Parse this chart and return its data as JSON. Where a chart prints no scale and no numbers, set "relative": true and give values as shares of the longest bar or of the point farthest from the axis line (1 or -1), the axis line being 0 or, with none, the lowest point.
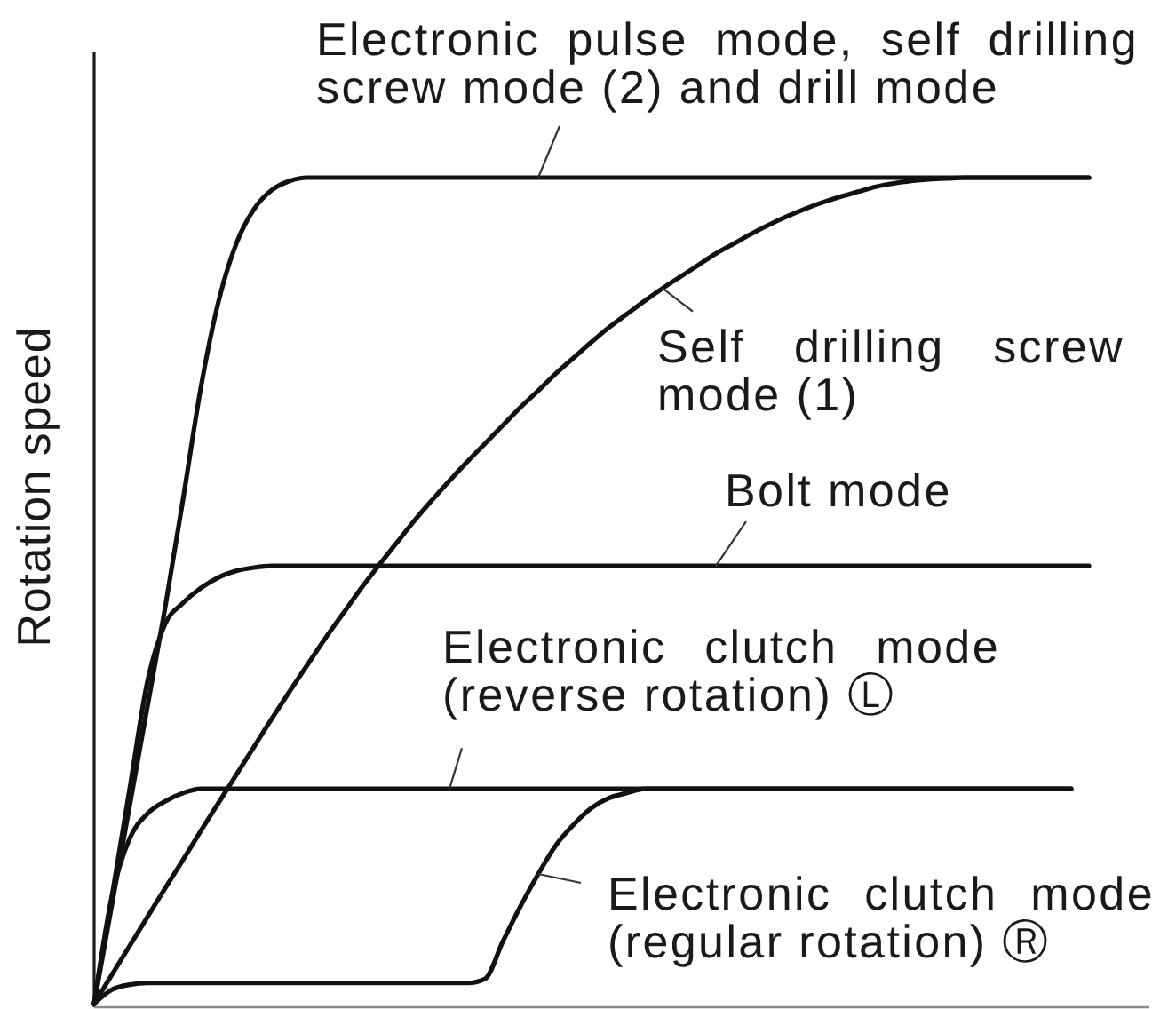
{
  "chart_data": {
    "type": "line",
    "ylabel": "Rotation speed",
    "relative": true,
    "categories": [
      null,
      null,
      null,
      null,
      null,
      null,
      null,
      null,
      null,
      null,
      null,
      null,
      null,
      null,
      null,
      null,
      null,
      null,
      null,
      null,
      null,
      null,
      null,
      null,
      null,
      null,
      null,
      null,
      null,
      null,
      null,
      null,
      null,
      null,
      null,
      null,
      null,
      null,
      null,
      null,
      null,
      null,
      null,
      null,
      null,
      null,
      null,
      null,
      null,
      null,
      null,
      null,
      null,
      null,
      null,
      null,
      null
    ],
    "series": [
      {
        "name": "Electronic pulse mode, self drilling screw mode (2) and drill mode",
        "color": "#111111",
        "values": [
          0,
          0.12,
          0.24,
          0.36,
          0.48,
          0.61,
          0.745,
          0.85,
          0.92,
          0.962,
          0.985,
          0.996,
          1,
          1,
          1,
          1,
          1,
          1,
          1,
          1,
          1,
          1,
          1,
          1,
          1,
          1,
          1,
          1,
          1,
          1,
          1,
          1,
          1,
          1,
          1,
          1,
          1,
          1,
          1,
          1,
          1,
          1,
          1,
          1,
          1,
          1,
          1,
          1,
          1,
          1,
          1,
          1,
          1,
          1,
          1,
          1,
          1
        ]
      },
      {
        "name": "Self drilling screw mode (1)",
        "color": "#111111",
        "values": [
          0,
          0.035,
          0.07,
          0.105,
          0.14,
          0.174,
          0.209,
          0.243,
          0.277,
          0.311,
          0.345,
          0.378,
          0.41,
          0.442,
          0.472,
          0.502,
          0.53,
          0.557,
          0.584,
          0.609,
          0.633,
          0.656,
          0.678,
          0.7,
          0.722,
          0.742,
          0.763,
          0.782,
          0.801,
          0.819,
          0.835,
          0.851,
          0.866,
          0.88,
          0.894,
          0.908,
          0.92,
          0.932,
          0.943,
          0.953,
          0.962,
          0.97,
          0.977,
          0.983,
          0.989,
          0.993,
          0.996,
          0.998,
          0.999,
          1,
          1,
          1,
          1,
          1,
          1,
          1,
          1
        ]
      },
      {
        "name": "Bolt mode",
        "color": "#111111",
        "values": [
          0,
          0.13,
          0.26,
          0.39,
          0.46,
          0.485,
          0.503,
          0.516,
          0.524,
          0.528,
          0.53,
          0.53,
          0.53,
          0.53,
          0.53,
          0.53,
          0.53,
          0.53,
          0.53,
          0.53,
          0.53,
          0.53,
          0.53,
          0.53,
          0.53,
          0.53,
          0.53,
          0.53,
          0.53,
          0.53,
          0.53,
          0.53,
          0.53,
          0.53,
          0.53,
          0.53,
          0.53,
          0.53,
          0.53,
          0.53,
          0.53,
          0.53,
          0.53,
          0.53,
          0.53,
          0.53,
          0.53,
          0.53,
          0.53,
          0.53,
          0.53,
          0.53,
          0.53,
          0.53,
          0.53,
          0.53,
          0.53
        ]
      },
      {
        "name": "Electronic clutch mode (reverse rotation) Ⓛ",
        "color": "#111111",
        "values": [
          0,
          0.13,
          0.2,
          0.23,
          0.245,
          0.255,
          0.26,
          0.26,
          0.26,
          0.26,
          0.26,
          0.26,
          0.26,
          0.26,
          0.26,
          0.26,
          0.26,
          0.26,
          0.26,
          0.26,
          0.26,
          0.26,
          0.26,
          0.26,
          0.26,
          0.26,
          0.26,
          0.26,
          0.26,
          0.26,
          0.26,
          0.26,
          0.26,
          0.26,
          0.26,
          0.26,
          0.26,
          0.26,
          0.26,
          0.26,
          0.26,
          0.26,
          0.26,
          0.26,
          0.26,
          0.26,
          0.26,
          0.26,
          0.26,
          0.26,
          0.26,
          0.26,
          0.26,
          0.26,
          0.26,
          0.26,
          null
        ]
      },
      {
        "name": "Electronic clutch mode (regular rotation) Ⓡ",
        "color": "#111111",
        "values": [
          0,
          0.017,
          0.023,
          0.025,
          0.025,
          0.025,
          0.025,
          0.025,
          0.025,
          0.025,
          0.025,
          0.025,
          0.025,
          0.025,
          0.025,
          0.025,
          0.025,
          0.025,
          0.025,
          0.025,
          0.025,
          0.025,
          0.03,
          0.075,
          0.118,
          0.157,
          0.192,
          0.217,
          0.237,
          0.249,
          0.255,
          0.26,
          0.26,
          0.26,
          0.26,
          0.26,
          0.26,
          0.26,
          0.26,
          0.26,
          0.26,
          0.26,
          0.26,
          0.26,
          0.26,
          0.26,
          0.26,
          0.26,
          0.26,
          0.26,
          0.26,
          0.26,
          0.26,
          0.26,
          0.26,
          0.26,
          null
        ]
      }
    ]
  }
}
